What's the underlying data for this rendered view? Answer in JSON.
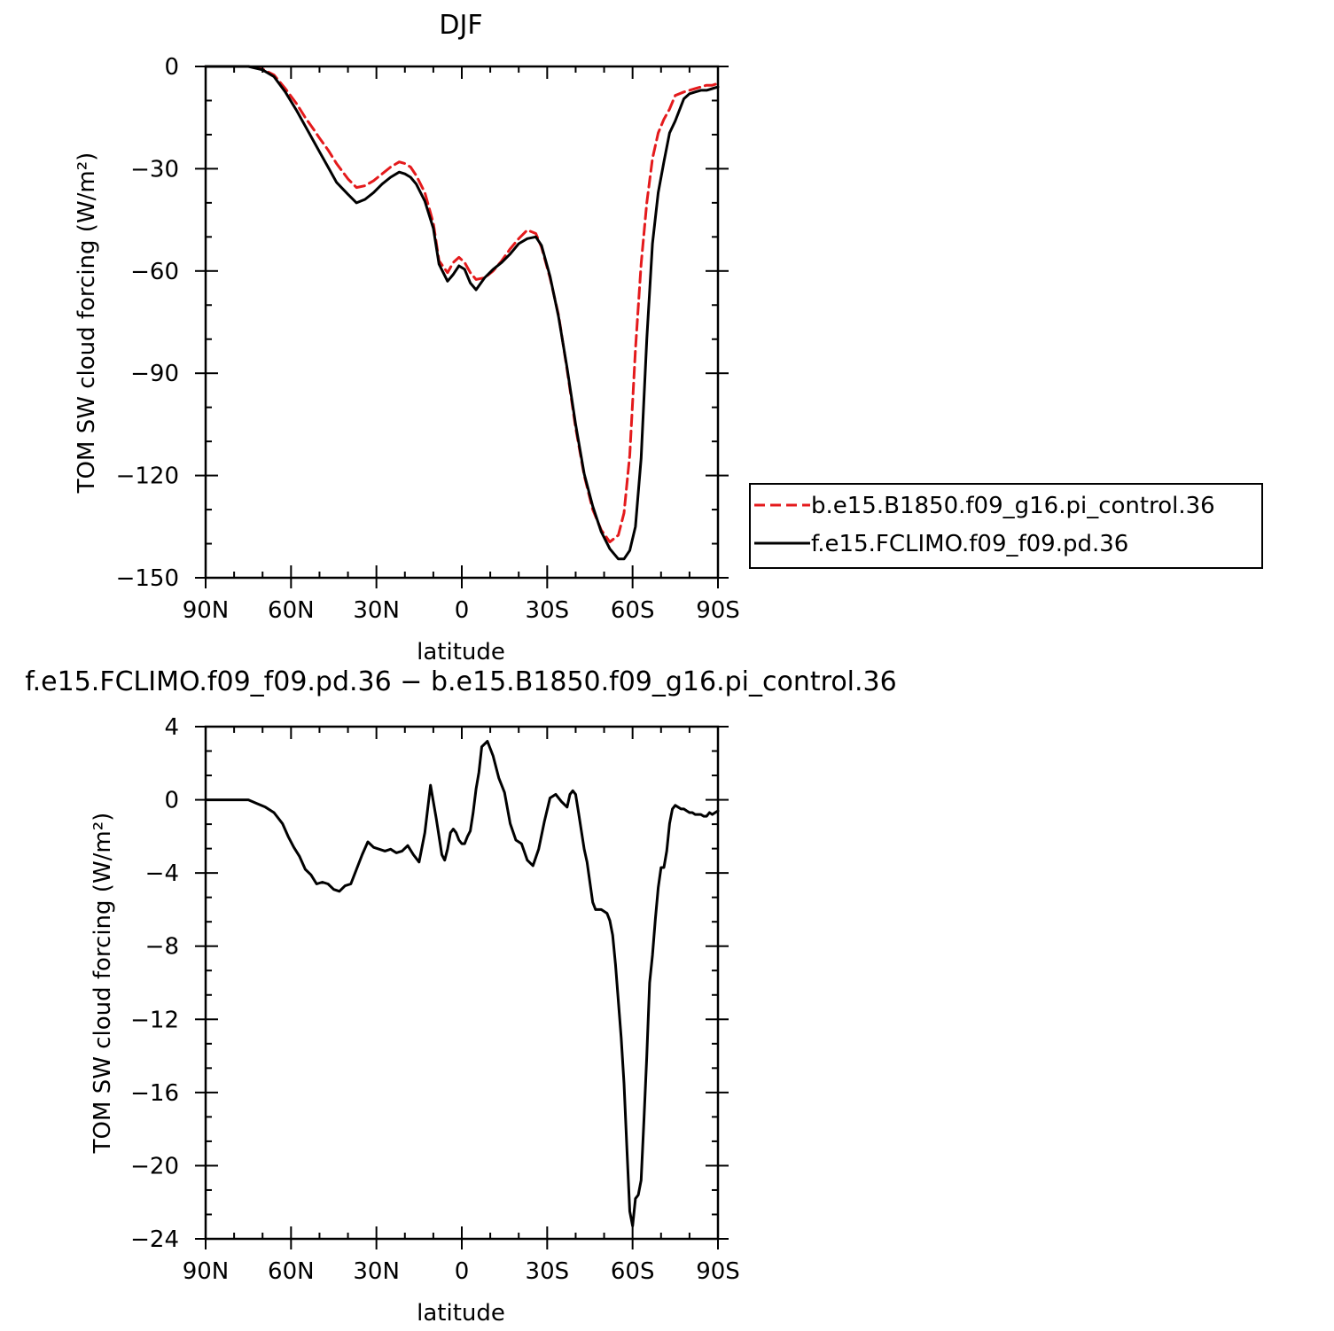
{
  "chart_data": [
    {
      "type": "line",
      "title": "DJF",
      "xlabel": "latitude",
      "ylabel": "TOM SW cloud forcing (W/m²)",
      "xlim": [
        90,
        -90
      ],
      "ylim": [
        -150,
        0
      ],
      "xticks": [
        {
          "value": 90,
          "label": "90N"
        },
        {
          "value": 60,
          "label": "60N"
        },
        {
          "value": 30,
          "label": "30N"
        },
        {
          "value": 0,
          "label": "0"
        },
        {
          "value": -30,
          "label": "30S"
        },
        {
          "value": -60,
          "label": "60S"
        },
        {
          "value": -90,
          "label": "90S"
        }
      ],
      "yticks": [
        {
          "value": 0,
          "label": "0"
        },
        {
          "value": -30,
          "label": "−30"
        },
        {
          "value": -60,
          "label": "−60"
        },
        {
          "value": -90,
          "label": "−90"
        },
        {
          "value": -120,
          "label": "−120"
        },
        {
          "value": -150,
          "label": "−150"
        }
      ],
      "grid": false,
      "legend_position": "right",
      "series": [
        {
          "name": "b.e15.B1850.f09_g16.pi_control.36",
          "color": "#e41a1c",
          "dash": "dashed",
          "x": [
            90,
            85,
            80,
            75,
            70,
            66,
            62,
            58,
            55,
            52,
            50,
            47,
            44,
            40,
            37,
            34,
            31,
            28,
            25,
            22,
            20,
            18,
            16,
            13,
            10,
            8,
            5,
            3,
            1,
            -1,
            -3,
            -5,
            -8,
            -11,
            -14,
            -17,
            -20,
            -23,
            -26,
            -28,
            -31,
            -34,
            -37,
            -40,
            -43,
            -46,
            -49,
            -52,
            -55,
            -57,
            -59,
            -61,
            -63,
            -65,
            -67,
            -69,
            -71,
            -73,
            -75,
            -78,
            -80,
            -82,
            -84,
            -86,
            -88,
            -90
          ],
          "y": [
            0,
            0,
            0,
            0,
            -0.8,
            -2.5,
            -6.5,
            -11,
            -15,
            -18.5,
            -21,
            -24.5,
            -28.5,
            -33,
            -35.5,
            -35,
            -33.5,
            -31.5,
            -29.5,
            -28,
            -28.5,
            -29.5,
            -32,
            -37,
            -46,
            -57,
            -60.5,
            -57.5,
            -56,
            -57.5,
            -60.5,
            -62.5,
            -62,
            -60,
            -57,
            -53.5,
            -50.5,
            -48,
            -49,
            -53,
            -62,
            -73,
            -89,
            -106,
            -120,
            -130,
            -136,
            -139.5,
            -137.5,
            -131,
            -114,
            -83,
            -58,
            -40,
            -27,
            -19.5,
            -15.5,
            -12.5,
            -8.5,
            -7.5,
            -7,
            -6.5,
            -6,
            -5.5,
            -5.5,
            -5
          ]
        },
        {
          "name": "f.e15.FCLIMO.f09_f09.pd.36",
          "color": "#000000",
          "dash": "solid",
          "x": [
            90,
            85,
            80,
            75,
            70,
            66,
            62,
            58,
            55,
            52,
            50,
            47,
            44,
            40,
            37,
            34,
            31,
            28,
            25,
            22,
            20,
            18,
            16,
            13,
            10,
            8,
            5,
            3,
            1,
            -1,
            -3,
            -5,
            -8,
            -11,
            -14,
            -17,
            -20,
            -23,
            -26,
            -28,
            -31,
            -34,
            -37,
            -40,
            -43,
            -46,
            -49,
            -52,
            -55,
            -57,
            -59,
            -61,
            -63,
            -65,
            -67,
            -69,
            -71,
            -73,
            -75,
            -78,
            -80,
            -82,
            -84,
            -86,
            -88,
            -90
          ],
          "y": [
            0,
            0,
            0,
            0,
            -1,
            -3,
            -7.5,
            -13,
            -17.5,
            -22,
            -25,
            -29.5,
            -34,
            -37.5,
            -40,
            -39,
            -37,
            -34.5,
            -32.5,
            -31,
            -31.5,
            -32.5,
            -34.5,
            -39.5,
            -47.5,
            -58,
            -63,
            -61,
            -58.5,
            -59.5,
            -63.5,
            -65.5,
            -62,
            -59.5,
            -57.5,
            -55,
            -52,
            -50.5,
            -50,
            -52.5,
            -61.5,
            -73.5,
            -88.5,
            -105,
            -119.5,
            -129,
            -136.5,
            -141.5,
            -144.5,
            -144.5,
            -142,
            -135,
            -115,
            -80,
            -52,
            -37,
            -28,
            -19.5,
            -16,
            -9.5,
            -8,
            -7.5,
            -7,
            -7,
            -6.5,
            -6
          ]
        }
      ]
    },
    {
      "type": "line",
      "title": "f.e15.FCLIMO.f09_f09.pd.36 − b.e15.B1850.f09_g16.pi_control.36",
      "xlabel": "latitude",
      "ylabel": "TOM SW cloud forcing (W/m²)",
      "xlim": [
        90,
        -90
      ],
      "ylim": [
        -24,
        4
      ],
      "xticks": [
        {
          "value": 90,
          "label": "90N"
        },
        {
          "value": 60,
          "label": "60N"
        },
        {
          "value": 30,
          "label": "30N"
        },
        {
          "value": 0,
          "label": "0"
        },
        {
          "value": -30,
          "label": "30S"
        },
        {
          "value": -60,
          "label": "60S"
        },
        {
          "value": -90,
          "label": "90S"
        }
      ],
      "yticks": [
        {
          "value": 4,
          "label": "4"
        },
        {
          "value": 0,
          "label": "0"
        },
        {
          "value": -4,
          "label": "−4"
        },
        {
          "value": -8,
          "label": "−8"
        },
        {
          "value": -12,
          "label": "−12"
        },
        {
          "value": -16,
          "label": "−16"
        },
        {
          "value": -20,
          "label": "−20"
        },
        {
          "value": -24,
          "label": "−24"
        }
      ],
      "grid": false,
      "series": [
        {
          "color": "#000000",
          "dash": "solid",
          "x": [
            90,
            85,
            80,
            75,
            72,
            69,
            66,
            63,
            61,
            59,
            57,
            55,
            53,
            51,
            49,
            47,
            45,
            43,
            41,
            39,
            37,
            35,
            33,
            31,
            29,
            27,
            25,
            23,
            21,
            19,
            17,
            15,
            13,
            11,
            9,
            7,
            6,
            5,
            4,
            3,
            2,
            1,
            0,
            -1,
            -2,
            -3,
            -4,
            -5,
            -6,
            -7,
            -9,
            -11,
            -13,
            -15,
            -17,
            -19,
            -21,
            -23,
            -25,
            -27,
            -29,
            -31,
            -33,
            -35,
            -37,
            -38,
            -39,
            -40,
            -41,
            -42,
            -43,
            -44,
            -45,
            -46,
            -47,
            -48,
            -49,
            -50,
            -51,
            -52,
            -53,
            -54,
            -55,
            -56,
            -57,
            -58,
            -59,
            -60,
            -61,
            -62,
            -63,
            -64,
            -65,
            -66,
            -67,
            -68,
            -69,
            -70,
            -71,
            -72,
            -73,
            -74,
            -75,
            -76,
            -77,
            -78,
            -79,
            -80,
            -81,
            -82,
            -83,
            -84,
            -85,
            -86,
            -87,
            -88,
            -89,
            -90
          ],
          "y": [
            0,
            0,
            0,
            0,
            -0.2,
            -0.4,
            -0.7,
            -1.3,
            -2,
            -2.6,
            -3.1,
            -3.8,
            -4.1,
            -4.6,
            -4.5,
            -4.6,
            -4.9,
            -5,
            -4.7,
            -4.6,
            -3.8,
            -3,
            -2.3,
            -2.6,
            -2.7,
            -2.8,
            -2.7,
            -2.9,
            -2.8,
            -2.5,
            -3,
            -3.4,
            -1.8,
            0.8,
            -1,
            -3,
            -3.3,
            -2.7,
            -1.8,
            -1.6,
            -1.8,
            -2.2,
            -2.4,
            -2.4,
            -2,
            -1.7,
            -0.7,
            0.6,
            1.5,
            2.9,
            3.2,
            2.4,
            1.2,
            0.4,
            -1.3,
            -2.2,
            -2.4,
            -3.3,
            -3.6,
            -2.7,
            -1.2,
            0.1,
            0.3,
            -0.1,
            -0.4,
            0.3,
            0.5,
            0.3,
            -0.7,
            -1.7,
            -2.7,
            -3.4,
            -4.5,
            -5.6,
            -6,
            -6,
            -6,
            -6.1,
            -6.2,
            -6.6,
            -7.4,
            -9,
            -11,
            -13,
            -15.5,
            -19,
            -22.5,
            -23.3,
            -21.8,
            -21.6,
            -20.8,
            -17.5,
            -14,
            -10,
            -8.5,
            -6.5,
            -4.8,
            -3.7,
            -3.7,
            -2.8,
            -1.3,
            -0.5,
            -0.3,
            -0.4,
            -0.5,
            -0.5,
            -0.6,
            -0.7,
            -0.7,
            -0.8,
            -0.8,
            -0.8,
            -0.9,
            -0.9,
            -0.7,
            -0.8,
            -0.7,
            -0.6
          ]
        }
      ]
    }
  ]
}
